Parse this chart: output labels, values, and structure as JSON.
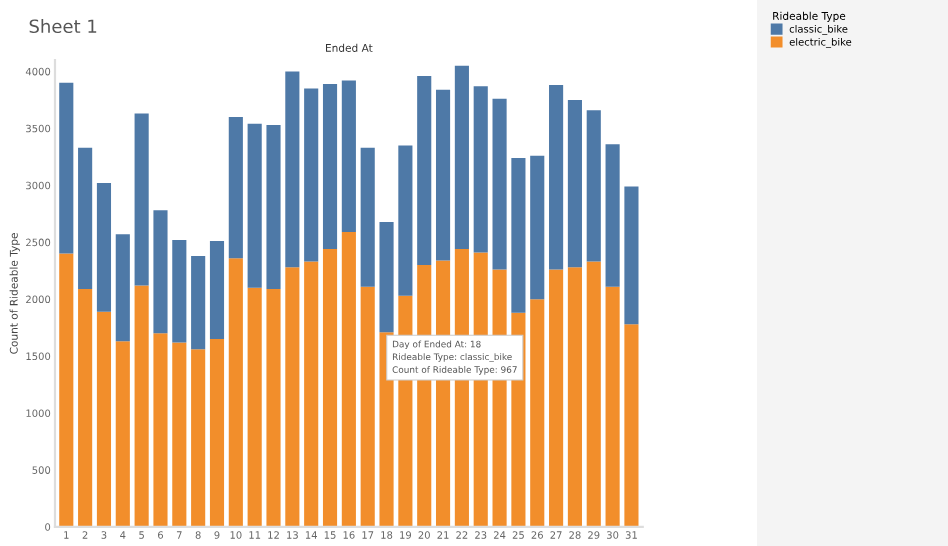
{
  "chart_data": {
    "type": "bar",
    "title": "Sheet 1",
    "xlabel": "Ended At",
    "ylabel": "Count of Rideable Type",
    "legend_title": "Rideable Type",
    "stacked": true,
    "legend": "top right",
    "categories": [
      "1",
      "2",
      "3",
      "4",
      "5",
      "6",
      "7",
      "8",
      "9",
      "10",
      "11",
      "12",
      "13",
      "14",
      "15",
      "16",
      "17",
      "18",
      "19",
      "20",
      "21",
      "22",
      "23",
      "24",
      "25",
      "26",
      "27",
      "28",
      "29",
      "30",
      "31"
    ],
    "series": [
      {
        "name": "electric_bike",
        "color": "#f28e2b",
        "values": [
          2400,
          2090,
          1890,
          1630,
          2120,
          1700,
          1620,
          1560,
          1650,
          2360,
          2100,
          2090,
          2280,
          2330,
          2440,
          2590,
          2110,
          1710,
          2030,
          2300,
          2340,
          2440,
          2410,
          2260,
          1880,
          2000,
          2260,
          2280,
          2330,
          2110,
          1780
        ]
      },
      {
        "name": "classic_bike",
        "color": "#4e79a7",
        "values": [
          1500,
          1240,
          1130,
          940,
          1510,
          1080,
          900,
          820,
          860,
          1240,
          1440,
          1440,
          1720,
          1520,
          1450,
          1330,
          1220,
          967,
          1320,
          1660,
          1500,
          1610,
          1460,
          1500,
          1360,
          1260,
          1620,
          1470,
          1330,
          1250,
          1210
        ]
      }
    ],
    "ylim": [
      0,
      4100
    ],
    "yticks": [
      0,
      500,
      1000,
      1500,
      2000,
      2500,
      3000,
      3500,
      4000
    ],
    "grid": false,
    "annotations": [
      {
        "text": "Day of Ended At: 18\nRideable Type: classic_bike\nCount of Rideable Type: 967",
        "x": "18",
        "y": 1710
      }
    ]
  }
}
